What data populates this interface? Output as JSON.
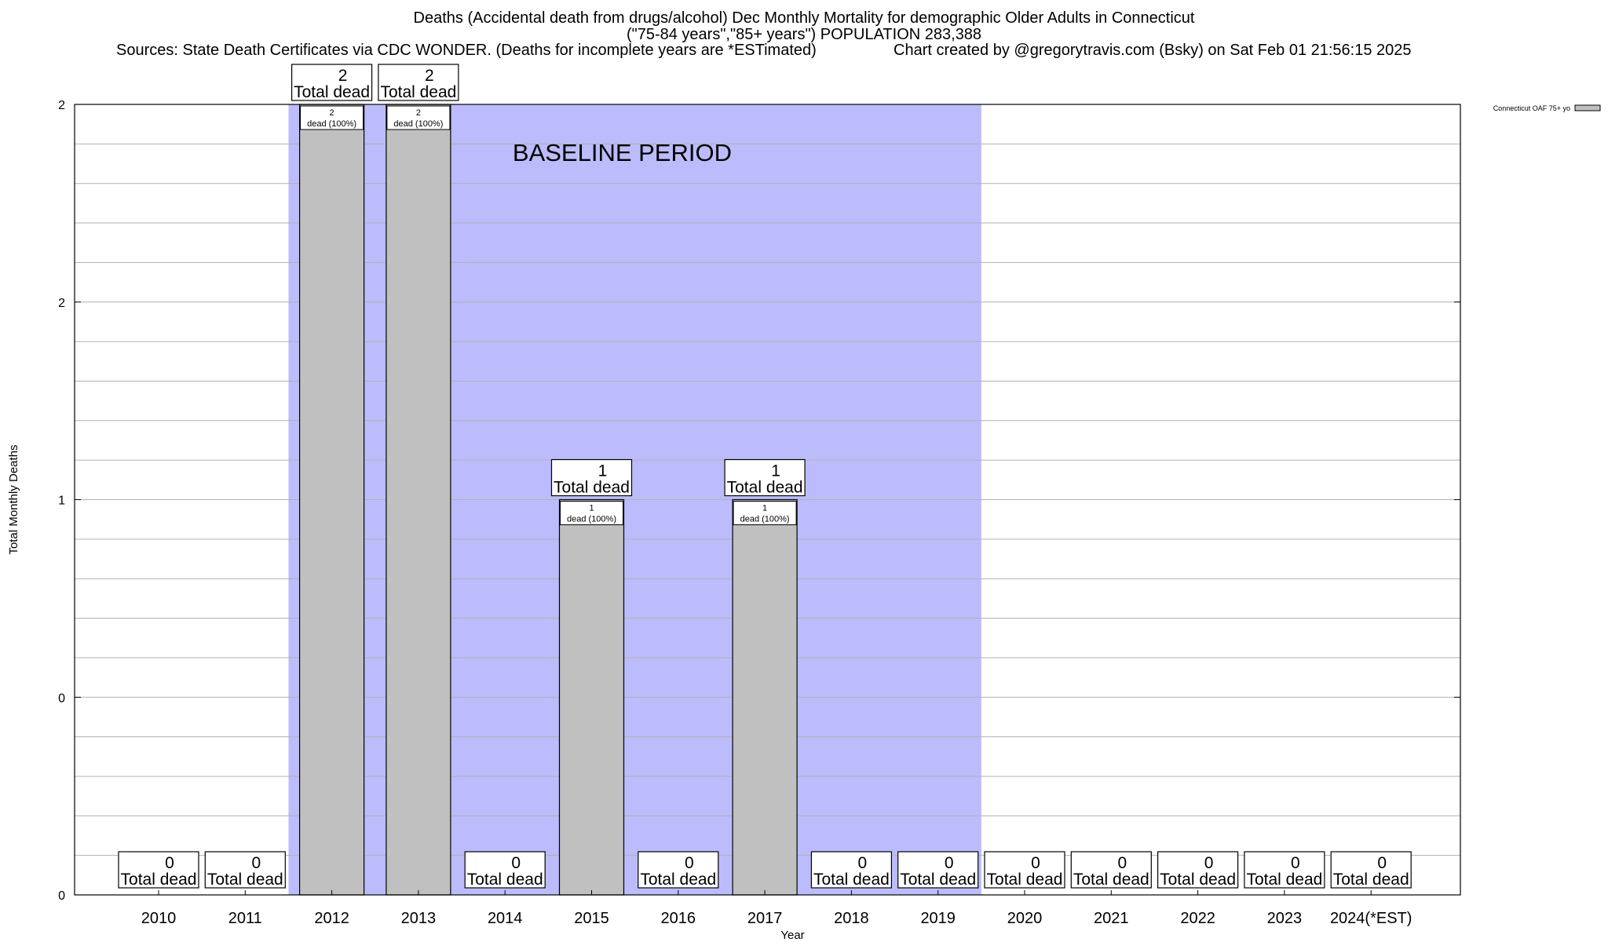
{
  "header": {
    "title": "Deaths (Accidental death from drugs/alcohol) Dec Monthly Mortality for demographic Older Adults in Connecticut",
    "subtitle": "(\"75-84 years\",\"85+ years\") POPULATION 283,388",
    "sources": "Sources: State Death Certificates via CDC WONDER. (Deaths for incomplete years are *ESTimated)",
    "credit": "Chart created by @gregorytravis.com (Bsky) on Sat Feb 01 21:56:15 2025"
  },
  "chart_data": {
    "type": "bar",
    "title": "Deaths (Accidental death from drugs/alcohol) Dec Monthly Mortality for demographic Older Adults in Connecticut",
    "xlabel": "Year",
    "ylabel": "Total Monthly Deaths",
    "categories": [
      "2010",
      "2011",
      "2012",
      "2013",
      "2014",
      "2015",
      "2016",
      "2017",
      "2018",
      "2019",
      "2020",
      "2021",
      "2022",
      "2023",
      "2024(*EST)"
    ],
    "series": [
      {
        "name": "Connecticut OAF 75+ yo",
        "values": [
          0,
          0,
          2,
          2,
          0,
          1,
          0,
          1,
          0,
          0,
          0,
          0,
          0,
          0,
          0
        ],
        "color": "#c0c0c0"
      }
    ],
    "ylim": [
      0,
      2
    ],
    "y_tick_labels": [
      "0",
      "0",
      "1",
      "2",
      "2"
    ],
    "total_label_suffix": "Total dead",
    "bar_label_suffix": "dead (100%)",
    "baseline": {
      "label": "BASELINE PERIOD",
      "start": "2012",
      "end": "2019",
      "color": "#bcbcfc"
    },
    "grid": true,
    "legend_position": "top-right"
  }
}
